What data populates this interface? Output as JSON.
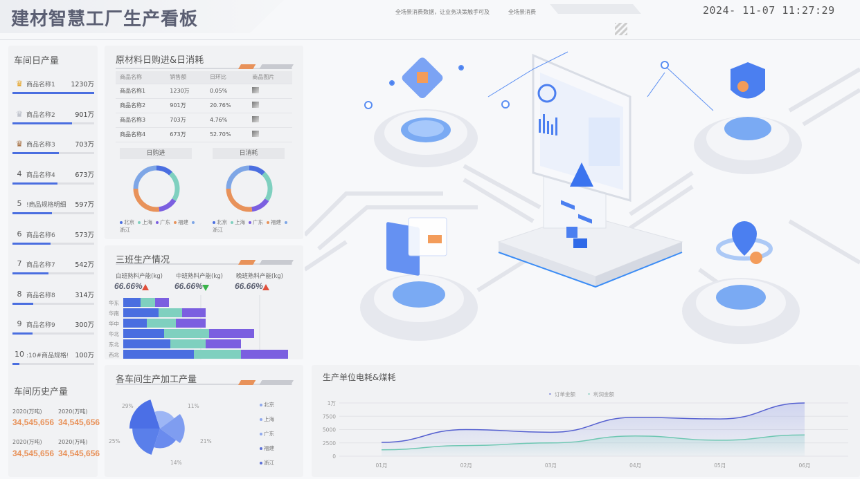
{
  "header": {
    "title": "建材智慧工厂生产看板",
    "tagline": "全场景消费数据，让业务决策触手可及",
    "tagline2": "全场景消费",
    "datetime": "2024- 11-07  11:27:29"
  },
  "colors": {
    "blue": "#4a6ee0",
    "teal": "#7fd0bf",
    "purple": "#7b5fe0",
    "orange": "#e8925a",
    "lightblue": "#7ea6e6",
    "up": "#e0503c",
    "down": "#3ab34a"
  },
  "daily": {
    "title": "车间日产量",
    "items": [
      {
        "rank": "1",
        "icon": "gold-crown-icon",
        "name": "商品名称1",
        "value": "1230万",
        "fraction": 1.0
      },
      {
        "rank": "2",
        "icon": "silver-crown-icon",
        "name": "商品名称2",
        "value": "901万",
        "fraction": 0.733
      },
      {
        "rank": "3",
        "icon": "bronze-crown-icon",
        "name": "商品名称3",
        "value": "703万",
        "fraction": 0.572
      },
      {
        "rank": "4",
        "name": "商品名称4",
        "value": "673万",
        "fraction": 0.547
      },
      {
        "rank": "5",
        "name": "!商品规格明细",
        "value": "597万",
        "fraction": 0.485
      },
      {
        "rank": "6",
        "name": "商品名称6",
        "value": "573万",
        "fraction": 0.466
      },
      {
        "rank": "7",
        "name": "商品名称7",
        "value": "542万",
        "fraction": 0.441
      },
      {
        "rank": "8",
        "name": "商品名称8",
        "value": "314万",
        "fraction": 0.255
      },
      {
        "rank": "9",
        "name": "商品名称9",
        "value": "300万",
        "fraction": 0.244
      },
      {
        "rank": "10",
        "name": ":10#商品规格!",
        "value": "100万",
        "fraction": 0.081
      }
    ]
  },
  "history": {
    "title": "车间历史产量",
    "items": [
      {
        "label": "2020(万吨)",
        "value": "34,545,656"
      },
      {
        "label": "2020(万吨)",
        "value": "34,545,656"
      },
      {
        "label": "2020(万吨)",
        "value": "34,545,656"
      },
      {
        "label": "2020(万吨)",
        "value": "34,545,656"
      }
    ]
  },
  "materials": {
    "title": "原材料日购进&日消耗",
    "columns": [
      "商品名称",
      "销售额",
      "日环比",
      "商品图片"
    ],
    "rows": [
      [
        "商品名称1",
        "1230万",
        "0.05%"
      ],
      [
        "商品名称2",
        "901万",
        "20.76%"
      ],
      [
        "商品名称3",
        "703万",
        "4.76%"
      ],
      [
        "商品名称4",
        "673万",
        "52.70%"
      ]
    ],
    "purchase_label": "日购进",
    "consume_label": "日消耗",
    "legend": [
      "北京",
      "上海",
      "广东",
      "福建",
      "浙江"
    ]
  },
  "shifts": {
    "title": "三班生产情况",
    "kpis": [
      {
        "label": "白班熟料产能(kg)",
        "value": "66.66%",
        "trend": "up"
      },
      {
        "label": "中班熟料产能(kg)",
        "value": "66.66%",
        "trend": "down"
      },
      {
        "label": "晚班熟料产能(kg)",
        "value": "66.66%",
        "trend": "up"
      }
    ]
  },
  "workshop": {
    "title": "各车间生产加工产量",
    "legend": [
      "北京",
      "上海",
      "广东",
      "福建",
      "浙江"
    ]
  },
  "energy": {
    "title": "生产单位电耗&煤耗"
  },
  "chart_data": [
    {
      "type": "pie",
      "variant": "donut",
      "title": "日购进",
      "categories": [
        "北京",
        "上海",
        "广东",
        "福建",
        "浙江"
      ],
      "values": [
        12,
        22,
        14,
        27,
        25
      ]
    },
    {
      "type": "pie",
      "variant": "donut",
      "title": "日消耗",
      "categories": [
        "北京",
        "上海",
        "广东",
        "福建",
        "浙江"
      ],
      "values": [
        12,
        22,
        14,
        27,
        25
      ]
    },
    {
      "type": "bar",
      "orientation": "horizontal",
      "stacked": true,
      "categories": [
        "华东",
        "华南",
        "华中",
        "华北",
        "东北",
        "西北"
      ],
      "series": [
        {
          "values": [
            25,
            51,
            34,
            59,
            68,
            102
          ]
        },
        {
          "values": [
            21,
            34,
            42,
            65,
            51,
            68
          ]
        },
        {
          "values": [
            20,
            34,
            43,
            65,
            51,
            68
          ]
        }
      ]
    },
    {
      "type": "pie",
      "variant": "rose",
      "categories": [
        "北京",
        "上海",
        "广东",
        "福建",
        "浙江"
      ],
      "values": [
        29,
        11,
        21,
        14,
        25
      ],
      "labels": [
        "29%",
        "11%",
        "21%",
        "14%",
        "25%"
      ]
    },
    {
      "type": "area",
      "categories": [
        "01月",
        "02月",
        "03月",
        "04月",
        "05月",
        "06月"
      ],
      "series": [
        {
          "name": "订单金额",
          "values": [
            2600,
            5000,
            4500,
            7300,
            7000,
            10000
          ]
        },
        {
          "name": "利润金额",
          "values": [
            1200,
            2000,
            2500,
            3800,
            3000,
            4000
          ]
        }
      ],
      "yticks": [
        "0",
        "2500",
        "5000",
        "7500",
        "1万"
      ],
      "ylim": [
        0,
        10000
      ],
      "legend": "top",
      "grid": true
    }
  ]
}
